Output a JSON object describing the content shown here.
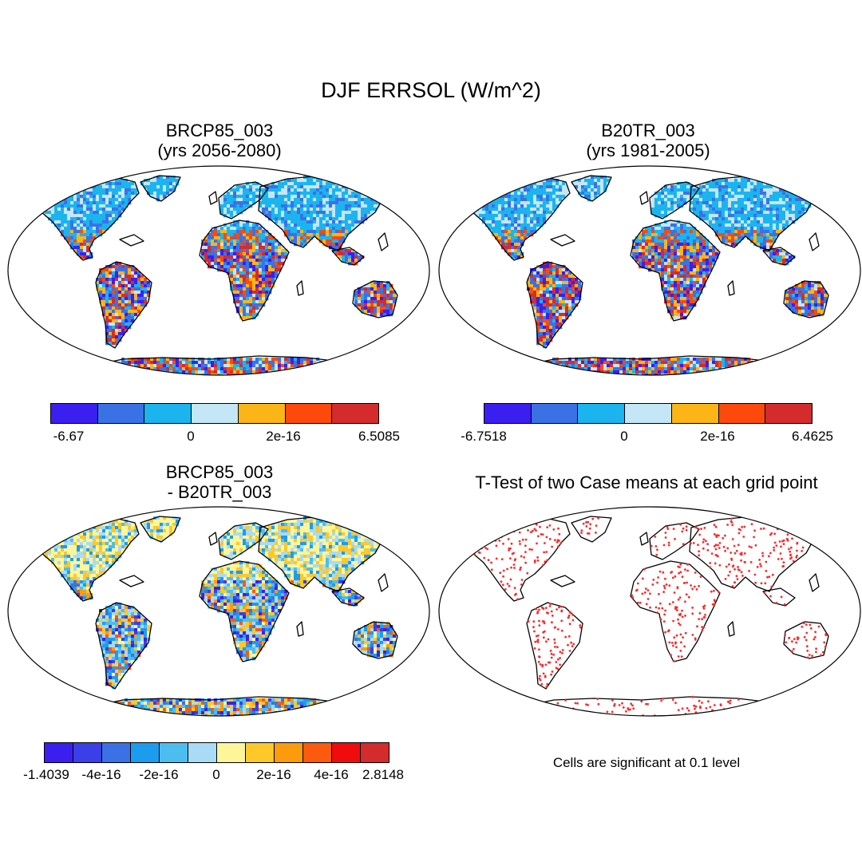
{
  "figure": {
    "title": "DJF ERRSOL (W/m^2)"
  },
  "panels": [
    {
      "id": "p1",
      "title": [
        "BRCP85_003",
        "(yrs 2056-2080)"
      ],
      "kind": "field",
      "palette": "base7",
      "colorbar": {
        "colors": [
          "#3a1ff0",
          "#3a72e6",
          "#1cb4ef",
          "#c4e6f6",
          "#fcb516",
          "#fd4a0c",
          "#d42c2c"
        ],
        "ticks": [
          "-6.67",
          "0",
          "2e-16",
          "6.5085"
        ]
      }
    },
    {
      "id": "p2",
      "title": [
        "B20TR_003",
        "(yrs 1981-2005)"
      ],
      "kind": "field",
      "palette": "base7",
      "colorbar": {
        "colors": [
          "#3a1ff0",
          "#3a72e6",
          "#1cb4ef",
          "#c4e6f6",
          "#fcb516",
          "#fd4a0c",
          "#d42c2c"
        ],
        "ticks": [
          "-6.7518",
          "0",
          "2e-16",
          "6.4625"
        ]
      }
    },
    {
      "id": "p3",
      "title": [
        "BRCP85_003",
        "- B20TR_003"
      ],
      "kind": "diff",
      "palette": "diff12",
      "colorbar": {
        "colors": [
          "#3a1ff0",
          "#3a3fe8",
          "#3a72e6",
          "#1c9cef",
          "#4dbdf0",
          "#a9dbf5",
          "#fcf59a",
          "#fcc82a",
          "#fc9c0c",
          "#fc5a0c",
          "#f00c0c",
          "#d42c2c"
        ],
        "ticks": [
          "-1.4039",
          "-4e-16",
          "-2e-16",
          "0",
          "2e-16",
          "4e-16",
          "2.8148"
        ]
      }
    },
    {
      "id": "p4",
      "title": [
        "T-Test of two Case means at each grid point"
      ],
      "kind": "ttest",
      "dot_color": "#ff2a2a",
      "note": "Cells are significant at 0.1 level"
    }
  ]
}
